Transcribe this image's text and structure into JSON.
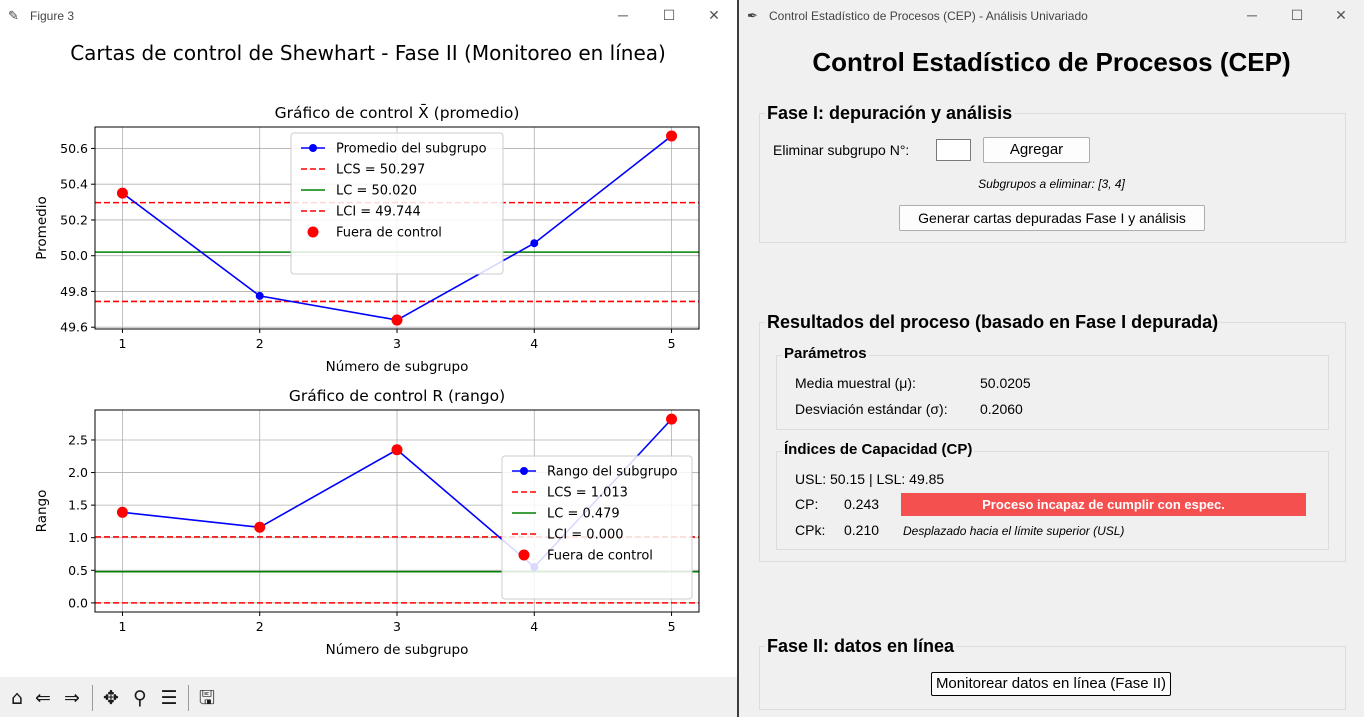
{
  "figure_window": {
    "title": "Figure 3",
    "suptitle": "Cartas de control de Shewhart - Fase II (Monitoreo en línea)",
    "toolbar": [
      "home-icon",
      "back-icon",
      "forward-icon",
      "pan-icon",
      "zoom-icon",
      "configure-subplots-icon",
      "save-icon"
    ]
  },
  "chart_data": [
    {
      "type": "line",
      "title": "Gráfico de control X̄ (promedio)",
      "xlabel": "Número de subgrupo",
      "ylabel": "Promedio",
      "x": [
        1,
        2,
        3,
        4,
        5
      ],
      "xticks": [
        "1",
        "2",
        "3",
        "4",
        "5"
      ],
      "xlim": [
        0.8,
        5.2
      ],
      "ylim": [
        49.59,
        50.72
      ],
      "yticks": [
        "49.6",
        "49.8",
        "50.0",
        "50.2",
        "50.4",
        "50.6"
      ],
      "ytick_values": [
        49.6,
        49.8,
        50.0,
        50.2,
        50.4,
        50.6
      ],
      "grid": true,
      "legend_position": "upper center",
      "series": [
        {
          "name": "Promedio del subgrupo",
          "values": [
            50.35,
            49.775,
            49.64,
            50.07,
            50.67
          ],
          "color": "#0000ff"
        }
      ],
      "hlines": [
        {
          "name": "LCS = 50.297",
          "value": 50.297,
          "color": "#ff0000",
          "dashed": true
        },
        {
          "name": "LC = 50.020",
          "value": 50.02,
          "color": "#008000",
          "dashed": false
        },
        {
          "name": "LCI = 49.744",
          "value": 49.744,
          "color": "#ff0000",
          "dashed": true
        }
      ],
      "out_of_control": {
        "name": "Fuera de control",
        "x": [
          1,
          3,
          5
        ],
        "y": [
          50.35,
          49.64,
          50.67
        ],
        "color": "#ff0000"
      }
    },
    {
      "type": "line",
      "title": "Gráfico de control R (rango)",
      "xlabel": "Número de subgrupo",
      "ylabel": "Rango",
      "x": [
        1,
        2,
        3,
        4,
        5
      ],
      "xticks": [
        "1",
        "2",
        "3",
        "4",
        "5"
      ],
      "xlim": [
        0.8,
        5.2
      ],
      "ylim": [
        -0.14,
        2.96
      ],
      "yticks": [
        "0.0",
        "0.5",
        "1.0",
        "1.5",
        "2.0",
        "2.5"
      ],
      "ytick_values": [
        0.0,
        0.5,
        1.0,
        1.5,
        2.0,
        2.5
      ],
      "grid": true,
      "legend_position": "center right",
      "series": [
        {
          "name": "Rango del subgrupo",
          "values": [
            1.39,
            1.16,
            2.35,
            0.55,
            2.82
          ],
          "color": "#0000ff"
        }
      ],
      "hlines": [
        {
          "name": "LCS = 1.013",
          "value": 1.013,
          "color": "#ff0000",
          "dashed": true
        },
        {
          "name": "LC = 0.479",
          "value": 0.479,
          "color": "#008000",
          "dashed": false
        },
        {
          "name": "LCI = 0.000",
          "value": 0.0,
          "color": "#ff0000",
          "dashed": true
        }
      ],
      "out_of_control": {
        "name": "Fuera de control",
        "x": [
          1,
          2,
          3,
          5
        ],
        "y": [
          1.39,
          1.16,
          2.35,
          2.82
        ],
        "color": "#ff0000"
      }
    }
  ],
  "cep_window": {
    "title": "Control Estadístico de Procesos (CEP) - Análisis Univariado",
    "heading": "Control Estadístico de Procesos (CEP)",
    "fase1": {
      "title": "Fase I: depuración y análisis",
      "remove_label": "Eliminar subgrupo N°:",
      "remove_value": "",
      "add_button": "Agregar",
      "to_remove": "Subgrupos a eliminar: [3, 4]",
      "generate_button": "Generar cartas depuradas Fase I y análisis"
    },
    "results": {
      "title": "Resultados del proceso (basado en Fase I depurada)",
      "params_title": "Parámetros",
      "mean_label": "Media muestral (μ):",
      "mean_value": "50.0205",
      "std_label": "Desviación estándar (σ):",
      "std_value": "0.2060",
      "cap_title": "Índices de Capacidad (CP)",
      "spec_limits": "USL: 50.15 | LSL: 49.85",
      "cp_label": "CP:",
      "cp_value": "0.243",
      "cp_status": "Proceso incapaz de cumplir con espec.",
      "cp_status_color": "#f45050",
      "cpk_label": "CPk:",
      "cpk_value": "0.210",
      "cpk_note": "Desplazado hacia el límite superior (USL)"
    },
    "fase2": {
      "title": "Fase II: datos en línea",
      "monitor_button": "Monitorear datos en línea (Fase II)"
    }
  }
}
